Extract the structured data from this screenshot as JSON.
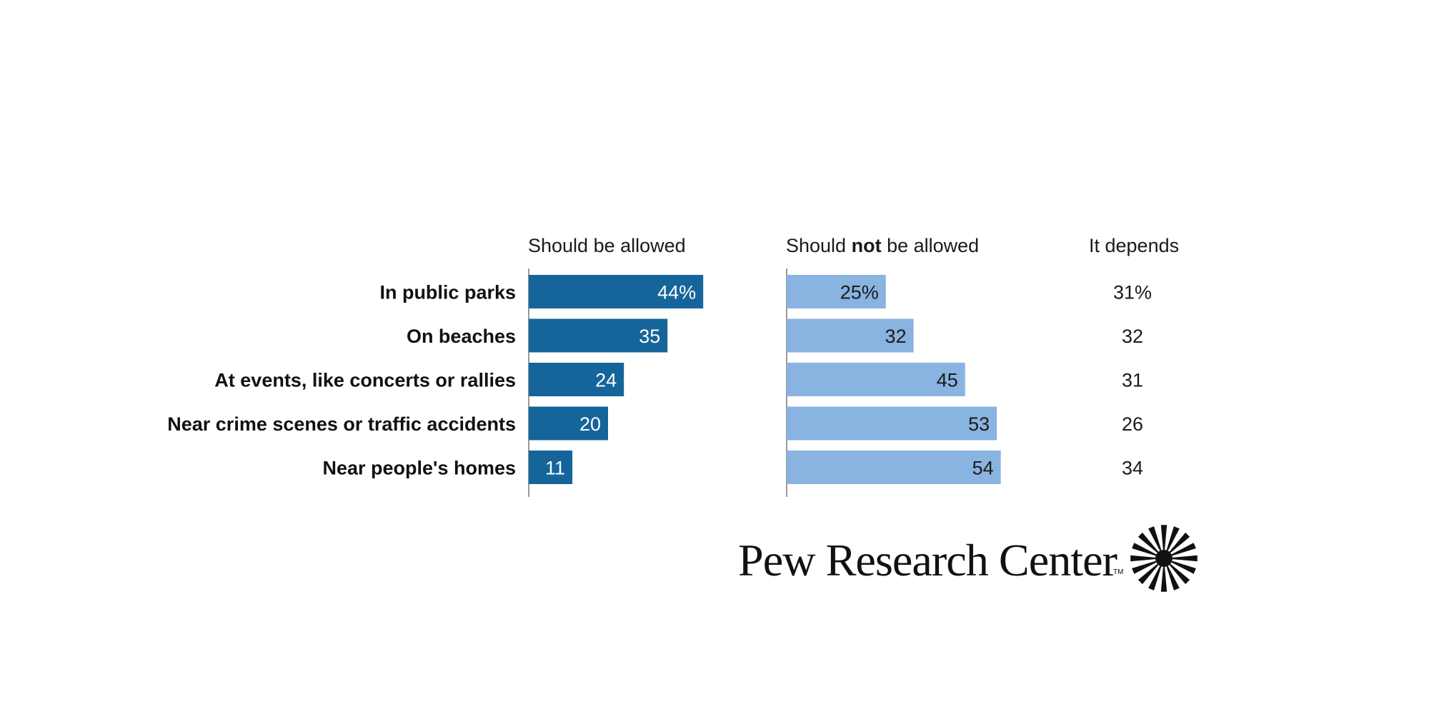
{
  "chart_data": {
    "type": "bar",
    "title": "",
    "categories": [
      "In public parks",
      "On beaches",
      "At events, like concerts or rallies",
      "Near crime scenes or traffic accidents",
      "Near people's homes"
    ],
    "series": [
      {
        "name": "Should be allowed",
        "values": [
          44,
          35,
          24,
          20,
          11
        ],
        "labels": [
          "44%",
          "35",
          "24",
          "20",
          "11"
        ],
        "color": "#15659b"
      },
      {
        "name": "Should not be allowed",
        "values": [
          25,
          32,
          45,
          53,
          54
        ],
        "labels": [
          "25%",
          "32",
          "45",
          "53",
          "54"
        ],
        "color": "#89b3e0"
      },
      {
        "name": "It depends",
        "values": [
          31,
          32,
          31,
          26,
          34
        ],
        "labels": [
          "31%",
          "32",
          "31",
          "26",
          "34"
        ]
      }
    ],
    "headers": {
      "allowed": "Should be allowed",
      "not_allowed_pre": "Should ",
      "not_allowed_bold": "not",
      "not_allowed_post": " be allowed",
      "depends": "It depends"
    },
    "xlim": [
      0,
      100
    ]
  },
  "branding": {
    "name": "Pew Research Center",
    "tm": "TM"
  },
  "colors": {
    "allowed": "#15659b",
    "not_allowed": "#89b3e0",
    "axis": "#9a9a9a"
  }
}
